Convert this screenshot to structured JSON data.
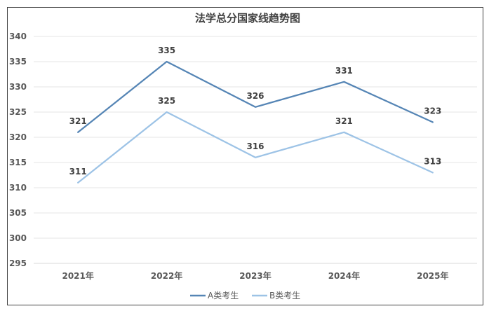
{
  "chart_data": {
    "type": "line",
    "title": "法学总分国家线趋势图",
    "categories": [
      "2021年",
      "2022年",
      "2023年",
      "2024年",
      "2025年"
    ],
    "series": [
      {
        "name": "A类考生",
        "values": [
          321,
          335,
          326,
          331,
          323
        ],
        "color": "#5585b5"
      },
      {
        "name": "B类考生",
        "values": [
          311,
          325,
          316,
          321,
          313
        ],
        "color": "#9dc3e6"
      }
    ],
    "ylim": [
      295,
      340
    ],
    "yticks": [
      295,
      300,
      305,
      310,
      315,
      320,
      325,
      330,
      335,
      340
    ],
    "grid": true,
    "legend": "bottom",
    "data_labels": true
  }
}
